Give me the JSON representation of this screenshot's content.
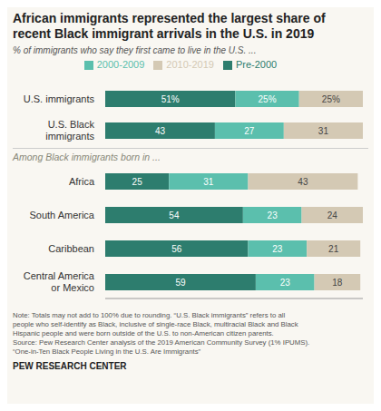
{
  "chart_data": {
    "type": "bar",
    "orientation": "horizontal",
    "stacked": true,
    "data_labels": true,
    "tick_labels": "y",
    "grid": false,
    "title": "African immigrants represented the largest share of\nrecent Black immigrant arrivals in the U.S. in 2019",
    "subtitle": "% of immigrants who say they first came to live in the U.S. ...",
    "annotations": [
      "Among Black immigrants born in ...",
      "Note: Totals may not add to 100% due to rounding. “U.S. Black immigrants” refers to all\npeople who self-identify as Black, inclusive of single-race Black, multiracial Black and Black\nHispanic people and were born outside of the U.S. to non-American citizen parents.\nSource: Pew Research Center analysis of the 2019 American Community Survey (1% IPUMS).\n“One-in-Ten Black People Living in the U.S. Are Immigrants”",
      "PEW RESEARCH CENTER"
    ],
    "categories": [
      "U.S. immigrants",
      "U.S. Black\nimmigrants",
      "Africa",
      "South America",
      "Caribbean",
      "Central America\nor Mexico"
    ],
    "xlim": [
      0,
      101
    ],
    "series": [
      {
        "name": "Pre-2000",
        "color": "#2d7d6e",
        "values": [
          51,
          43,
          25,
          54,
          56,
          59
        ],
        "value_labels": [
          "51%",
          "43",
          "25",
          "54",
          "56",
          "59"
        ]
      },
      {
        "name": "2000-2009",
        "color": "#5bbfad",
        "values": [
          25,
          27,
          31,
          23,
          23,
          23
        ],
        "value_labels": [
          "25%",
          "27",
          "31",
          "23",
          "23",
          "23"
        ]
      },
      {
        "name": "2010-2019",
        "color": "#d4c9b4",
        "values": [
          25,
          31,
          43,
          24,
          21,
          18
        ],
        "value_labels": [
          "25%",
          "31",
          "43",
          "24",
          "21",
          "18"
        ]
      }
    ]
  }
}
